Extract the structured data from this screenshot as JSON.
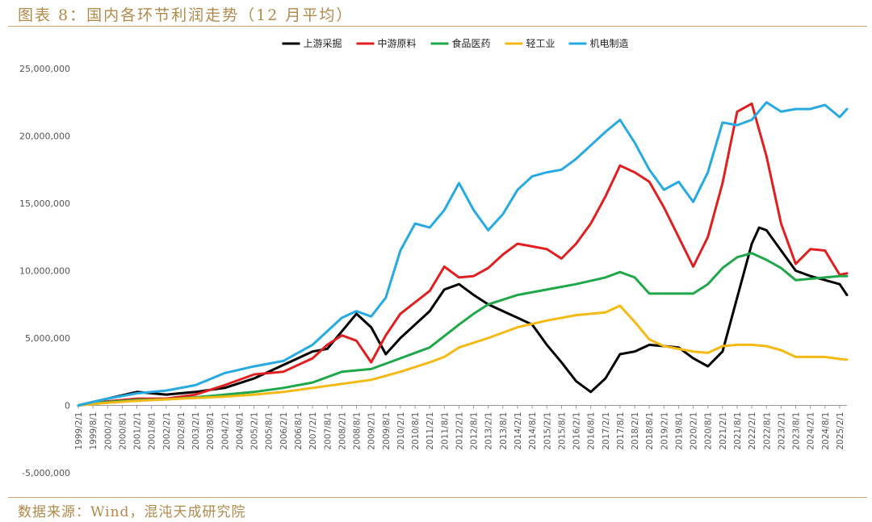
{
  "title": "图表 8：国内各环节利润走势（12 月平均）",
  "source": "数据来源：Wind，混沌天成研究院",
  "chart_data": {
    "type": "line",
    "ylim": [
      -5000000,
      25000000
    ],
    "yticks": [
      "25,000,000",
      "20,000,000",
      "15,000,000",
      "10,000,000",
      "5,000,000",
      "0",
      "-5,000,000"
    ],
    "ytick_values": [
      25000000,
      20000000,
      15000000,
      10000000,
      5000000,
      0,
      -5000000
    ],
    "xticks": [
      "1999/2/1",
      "1999/8/1",
      "2000/2/1",
      "2000/8/1",
      "2001/2/1",
      "2001/8/1",
      "2002/2/1",
      "2002/8/1",
      "2003/2/1",
      "2003/8/1",
      "2004/2/1",
      "2004/8/1",
      "2005/2/1",
      "2005/8/1",
      "2006/2/1",
      "2006/8/1",
      "2007/2/1",
      "2007/8/1",
      "2008/2/1",
      "2008/8/1",
      "2009/2/1",
      "2009/8/1",
      "2010/2/1",
      "2010/8/1",
      "2011/2/1",
      "2011/8/1",
      "2012/2/1",
      "2012/8/1",
      "2013/2/1",
      "2013/8/1",
      "2014/2/1",
      "2014/8/1",
      "2015/2/1",
      "2015/8/1",
      "2016/2/1",
      "2016/8/1",
      "2017/2/1",
      "2017/8/1",
      "2018/2/1",
      "2018/8/1",
      "2019/2/1",
      "2019/8/1",
      "2020/2/1",
      "2020/8/1",
      "2021/2/1",
      "2021/8/1",
      "2022/2/1",
      "2022/8/1",
      "2023/2/1",
      "2023/8/1",
      "2024/2/1",
      "2024/8/1",
      "2025/2/1"
    ],
    "x_start": "1999/2/1",
    "x_end": "2025/5/1",
    "grid": false,
    "legend_position": "top",
    "series": [
      {
        "name": "上游采掘",
        "color": "#000000",
        "points": [
          [
            "1999/2/1",
            0
          ],
          [
            "2000/2/1",
            500000
          ],
          [
            "2001/2/1",
            1000000
          ],
          [
            "2002/2/1",
            800000
          ],
          [
            "2003/2/1",
            1000000
          ],
          [
            "2004/2/1",
            1300000
          ],
          [
            "2005/2/1",
            2000000
          ],
          [
            "2006/2/1",
            3000000
          ],
          [
            "2007/2/1",
            4000000
          ],
          [
            "2007/8/1",
            4200000
          ],
          [
            "2008/2/1",
            5500000
          ],
          [
            "2008/8/1",
            6800000
          ],
          [
            "2009/2/1",
            5800000
          ],
          [
            "2009/8/1",
            3800000
          ],
          [
            "2010/2/1",
            5000000
          ],
          [
            "2011/2/1",
            7000000
          ],
          [
            "2011/8/1",
            8600000
          ],
          [
            "2012/2/1",
            9000000
          ],
          [
            "2012/8/1",
            8200000
          ],
          [
            "2013/2/1",
            7500000
          ],
          [
            "2013/8/1",
            7000000
          ],
          [
            "2014/2/1",
            6500000
          ],
          [
            "2014/8/1",
            6000000
          ],
          [
            "2015/2/1",
            4500000
          ],
          [
            "2015/8/1",
            3200000
          ],
          [
            "2016/2/1",
            1800000
          ],
          [
            "2016/8/1",
            1000000
          ],
          [
            "2017/2/1",
            2000000
          ],
          [
            "2017/8/1",
            3800000
          ],
          [
            "2018/2/1",
            4000000
          ],
          [
            "2018/8/1",
            4500000
          ],
          [
            "2019/2/1",
            4400000
          ],
          [
            "2019/8/1",
            4300000
          ],
          [
            "2020/2/1",
            3500000
          ],
          [
            "2020/8/1",
            2900000
          ],
          [
            "2021/2/1",
            4000000
          ],
          [
            "2021/8/1",
            8000000
          ],
          [
            "2022/2/1",
            12000000
          ],
          [
            "2022/5/1",
            13200000
          ],
          [
            "2022/8/1",
            13000000
          ],
          [
            "2023/2/1",
            11500000
          ],
          [
            "2023/8/1",
            10000000
          ],
          [
            "2024/2/1",
            9600000
          ],
          [
            "2024/8/1",
            9300000
          ],
          [
            "2025/2/1",
            9000000
          ],
          [
            "2025/5/1",
            8200000
          ]
        ]
      },
      {
        "name": "中游原料",
        "color": "#e02020",
        "points": [
          [
            "1999/2/1",
            0
          ],
          [
            "2000/2/1",
            300000
          ],
          [
            "2001/2/1",
            500000
          ],
          [
            "2002/2/1",
            500000
          ],
          [
            "2003/2/1",
            800000
          ],
          [
            "2004/2/1",
            1500000
          ],
          [
            "2005/2/1",
            2300000
          ],
          [
            "2006/2/1",
            2500000
          ],
          [
            "2007/2/1",
            3500000
          ],
          [
            "2007/8/1",
            4500000
          ],
          [
            "2008/2/1",
            5200000
          ],
          [
            "2008/8/1",
            4800000
          ],
          [
            "2009/2/1",
            3200000
          ],
          [
            "2009/8/1",
            5200000
          ],
          [
            "2010/2/1",
            6800000
          ],
          [
            "2011/2/1",
            8500000
          ],
          [
            "2011/8/1",
            10300000
          ],
          [
            "2012/2/1",
            9500000
          ],
          [
            "2012/8/1",
            9600000
          ],
          [
            "2013/2/1",
            10200000
          ],
          [
            "2013/8/1",
            11200000
          ],
          [
            "2014/2/1",
            12000000
          ],
          [
            "2014/8/1",
            11800000
          ],
          [
            "2015/2/1",
            11600000
          ],
          [
            "2015/8/1",
            10900000
          ],
          [
            "2016/2/1",
            12000000
          ],
          [
            "2016/8/1",
            13500000
          ],
          [
            "2017/2/1",
            15500000
          ],
          [
            "2017/8/1",
            17800000
          ],
          [
            "2018/2/1",
            17300000
          ],
          [
            "2018/8/1",
            16600000
          ],
          [
            "2019/2/1",
            14700000
          ],
          [
            "2019/8/1",
            12500000
          ],
          [
            "2020/2/1",
            10300000
          ],
          [
            "2020/8/1",
            12500000
          ],
          [
            "2021/2/1",
            16500000
          ],
          [
            "2021/8/1",
            21800000
          ],
          [
            "2022/2/1",
            22400000
          ],
          [
            "2022/8/1",
            18500000
          ],
          [
            "2023/2/1",
            13500000
          ],
          [
            "2023/8/1",
            10500000
          ],
          [
            "2024/2/1",
            11600000
          ],
          [
            "2024/8/1",
            11500000
          ],
          [
            "2025/2/1",
            9700000
          ],
          [
            "2025/5/1",
            9800000
          ]
        ]
      },
      {
        "name": "食品医药",
        "color": "#1fa84a",
        "points": [
          [
            "1999/2/1",
            0
          ],
          [
            "2000/2/1",
            250000
          ],
          [
            "2001/2/1",
            400000
          ],
          [
            "2002/2/1",
            450000
          ],
          [
            "2003/2/1",
            600000
          ],
          [
            "2004/2/1",
            800000
          ],
          [
            "2005/2/1",
            1000000
          ],
          [
            "2006/2/1",
            1300000
          ],
          [
            "2007/2/1",
            1700000
          ],
          [
            "2008/2/1",
            2500000
          ],
          [
            "2009/2/1",
            2700000
          ],
          [
            "2010/2/1",
            3500000
          ],
          [
            "2011/2/1",
            4300000
          ],
          [
            "2012/2/1",
            6000000
          ],
          [
            "2012/8/1",
            6800000
          ],
          [
            "2013/2/1",
            7500000
          ],
          [
            "2014/2/1",
            8200000
          ],
          [
            "2015/2/1",
            8600000
          ],
          [
            "2016/2/1",
            9000000
          ],
          [
            "2017/2/1",
            9500000
          ],
          [
            "2017/8/1",
            9900000
          ],
          [
            "2018/2/1",
            9500000
          ],
          [
            "2018/8/1",
            8300000
          ],
          [
            "2019/2/1",
            8300000
          ],
          [
            "2019/8/1",
            8300000
          ],
          [
            "2020/2/1",
            8300000
          ],
          [
            "2020/8/1",
            9000000
          ],
          [
            "2021/2/1",
            10200000
          ],
          [
            "2021/8/1",
            11000000
          ],
          [
            "2022/2/1",
            11300000
          ],
          [
            "2022/8/1",
            10800000
          ],
          [
            "2023/2/1",
            10200000
          ],
          [
            "2023/8/1",
            9300000
          ],
          [
            "2024/2/1",
            9400000
          ],
          [
            "2024/8/1",
            9500000
          ],
          [
            "2025/2/1",
            9600000
          ],
          [
            "2025/5/1",
            9600000
          ]
        ]
      },
      {
        "name": "轻工业",
        "color": "#f5b914",
        "points": [
          [
            "1999/2/1",
            0
          ],
          [
            "2000/2/1",
            200000
          ],
          [
            "2001/2/1",
            350000
          ],
          [
            "2002/2/1",
            450000
          ],
          [
            "2003/2/1",
            550000
          ],
          [
            "2004/2/1",
            650000
          ],
          [
            "2005/2/1",
            800000
          ],
          [
            "2006/2/1",
            1000000
          ],
          [
            "2007/2/1",
            1300000
          ],
          [
            "2008/2/1",
            1600000
          ],
          [
            "2009/2/1",
            1900000
          ],
          [
            "2010/2/1",
            2500000
          ],
          [
            "2011/2/1",
            3200000
          ],
          [
            "2011/8/1",
            3600000
          ],
          [
            "2012/2/1",
            4300000
          ],
          [
            "2013/2/1",
            5000000
          ],
          [
            "2014/2/1",
            5800000
          ],
          [
            "2015/2/1",
            6300000
          ],
          [
            "2016/2/1",
            6700000
          ],
          [
            "2017/2/1",
            6900000
          ],
          [
            "2017/8/1",
            7400000
          ],
          [
            "2018/2/1",
            6200000
          ],
          [
            "2018/8/1",
            4900000
          ],
          [
            "2019/2/1",
            4400000
          ],
          [
            "2019/8/1",
            4200000
          ],
          [
            "2020/2/1",
            4000000
          ],
          [
            "2020/8/1",
            3900000
          ],
          [
            "2021/2/1",
            4400000
          ],
          [
            "2021/8/1",
            4500000
          ],
          [
            "2022/2/1",
            4500000
          ],
          [
            "2022/8/1",
            4400000
          ],
          [
            "2023/2/1",
            4100000
          ],
          [
            "2023/8/1",
            3600000
          ],
          [
            "2024/2/1",
            3600000
          ],
          [
            "2024/8/1",
            3600000
          ],
          [
            "2025/2/1",
            3450000
          ],
          [
            "2025/5/1",
            3400000
          ]
        ]
      },
      {
        "name": "机电制造",
        "color": "#27a9e1",
        "points": [
          [
            "1999/2/1",
            0
          ],
          [
            "2000/2/1",
            500000
          ],
          [
            "2001/2/1",
            900000
          ],
          [
            "2002/2/1",
            1100000
          ],
          [
            "2003/2/1",
            1500000
          ],
          [
            "2004/2/1",
            2400000
          ],
          [
            "2005/2/1",
            2900000
          ],
          [
            "2006/2/1",
            3300000
          ],
          [
            "2007/2/1",
            4500000
          ],
          [
            "2008/2/1",
            6500000
          ],
          [
            "2008/8/1",
            7000000
          ],
          [
            "2009/2/1",
            6600000
          ],
          [
            "2009/8/1",
            8000000
          ],
          [
            "2010/2/1",
            11500000
          ],
          [
            "2010/8/1",
            13500000
          ],
          [
            "2011/2/1",
            13200000
          ],
          [
            "2011/8/1",
            14500000
          ],
          [
            "2012/2/1",
            16500000
          ],
          [
            "2012/8/1",
            14500000
          ],
          [
            "2013/2/1",
            13000000
          ],
          [
            "2013/8/1",
            14200000
          ],
          [
            "2014/2/1",
            16000000
          ],
          [
            "2014/8/1",
            17000000
          ],
          [
            "2015/2/1",
            17300000
          ],
          [
            "2015/8/1",
            17500000
          ],
          [
            "2016/2/1",
            18300000
          ],
          [
            "2016/8/1",
            19300000
          ],
          [
            "2017/2/1",
            20300000
          ],
          [
            "2017/8/1",
            21200000
          ],
          [
            "2018/2/1",
            19500000
          ],
          [
            "2018/8/1",
            17500000
          ],
          [
            "2019/2/1",
            16000000
          ],
          [
            "2019/8/1",
            16600000
          ],
          [
            "2020/2/1",
            15100000
          ],
          [
            "2020/8/1",
            17300000
          ],
          [
            "2021/2/1",
            21000000
          ],
          [
            "2021/8/1",
            20800000
          ],
          [
            "2022/2/1",
            21200000
          ],
          [
            "2022/8/1",
            22500000
          ],
          [
            "2023/2/1",
            21800000
          ],
          [
            "2023/8/1",
            22000000
          ],
          [
            "2024/2/1",
            22000000
          ],
          [
            "2024/8/1",
            22300000
          ],
          [
            "2025/2/1",
            21400000
          ],
          [
            "2025/5/1",
            22000000
          ]
        ]
      }
    ]
  }
}
